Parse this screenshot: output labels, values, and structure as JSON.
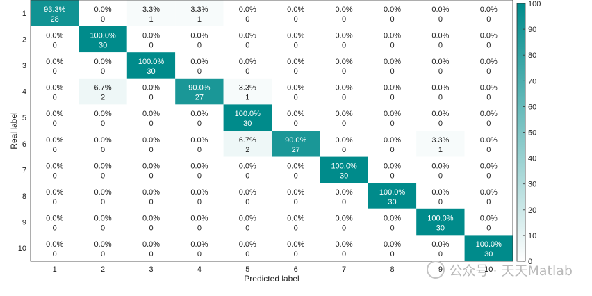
{
  "chart_data": {
    "type": "heatmap",
    "title": "",
    "xlabel": "Predicted label",
    "ylabel": "Real label",
    "x_categories": [
      "1",
      "2",
      "3",
      "4",
      "5",
      "6",
      "7",
      "8",
      "9",
      "10"
    ],
    "y_categories": [
      "1",
      "2",
      "3",
      "4",
      "5",
      "6",
      "7",
      "8",
      "9",
      "10"
    ],
    "counts": [
      [
        28,
        0,
        1,
        1,
        0,
        0,
        0,
        0,
        0,
        0
      ],
      [
        0,
        30,
        0,
        0,
        0,
        0,
        0,
        0,
        0,
        0
      ],
      [
        0,
        0,
        30,
        0,
        0,
        0,
        0,
        0,
        0,
        0
      ],
      [
        0,
        2,
        0,
        27,
        1,
        0,
        0,
        0,
        0,
        0
      ],
      [
        0,
        0,
        0,
        0,
        30,
        0,
        0,
        0,
        0,
        0
      ],
      [
        0,
        0,
        0,
        0,
        2,
        27,
        0,
        0,
        1,
        0
      ],
      [
        0,
        0,
        0,
        0,
        0,
        0,
        30,
        0,
        0,
        0
      ],
      [
        0,
        0,
        0,
        0,
        0,
        0,
        0,
        30,
        0,
        0
      ],
      [
        0,
        0,
        0,
        0,
        0,
        0,
        0,
        0,
        30,
        0
      ],
      [
        0,
        0,
        0,
        0,
        0,
        0,
        0,
        0,
        0,
        30
      ]
    ],
    "percents": [
      [
        "93.3%",
        "0.0%",
        "3.3%",
        "3.3%",
        "0.0%",
        "0.0%",
        "0.0%",
        "0.0%",
        "0.0%",
        "0.0%"
      ],
      [
        "0.0%",
        "100.0%",
        "0.0%",
        "0.0%",
        "0.0%",
        "0.0%",
        "0.0%",
        "0.0%",
        "0.0%",
        "0.0%"
      ],
      [
        "0.0%",
        "0.0%",
        "100.0%",
        "0.0%",
        "0.0%",
        "0.0%",
        "0.0%",
        "0.0%",
        "0.0%",
        "0.0%"
      ],
      [
        "0.0%",
        "6.7%",
        "0.0%",
        "90.0%",
        "3.3%",
        "0.0%",
        "0.0%",
        "0.0%",
        "0.0%",
        "0.0%"
      ],
      [
        "0.0%",
        "0.0%",
        "0.0%",
        "0.0%",
        "100.0%",
        "0.0%",
        "0.0%",
        "0.0%",
        "0.0%",
        "0.0%"
      ],
      [
        "0.0%",
        "0.0%",
        "0.0%",
        "0.0%",
        "6.7%",
        "90.0%",
        "0.0%",
        "0.0%",
        "3.3%",
        "0.0%"
      ],
      [
        "0.0%",
        "0.0%",
        "0.0%",
        "0.0%",
        "0.0%",
        "0.0%",
        "100.0%",
        "0.0%",
        "0.0%",
        "0.0%"
      ],
      [
        "0.0%",
        "0.0%",
        "0.0%",
        "0.0%",
        "0.0%",
        "0.0%",
        "0.0%",
        "100.0%",
        "0.0%",
        "0.0%"
      ],
      [
        "0.0%",
        "0.0%",
        "0.0%",
        "0.0%",
        "0.0%",
        "0.0%",
        "0.0%",
        "0.0%",
        "100.0%",
        "0.0%"
      ],
      [
        "0.0%",
        "0.0%",
        "0.0%",
        "0.0%",
        "0.0%",
        "0.0%",
        "0.0%",
        "0.0%",
        "0.0%",
        "100.0%"
      ]
    ],
    "colorbar": {
      "min": 0,
      "max": 100,
      "ticks": [
        0,
        10,
        20,
        30,
        40,
        50,
        60,
        70,
        80,
        90,
        100
      ]
    },
    "colors": {
      "high": "#008b8b",
      "low": "#ffffff",
      "grid": "#e6e6e6"
    },
    "grid": false,
    "legend": "colorbar-right"
  },
  "watermark": {
    "text": "公众号 · 天天Matlab",
    "icon": "wechat-icon"
  }
}
